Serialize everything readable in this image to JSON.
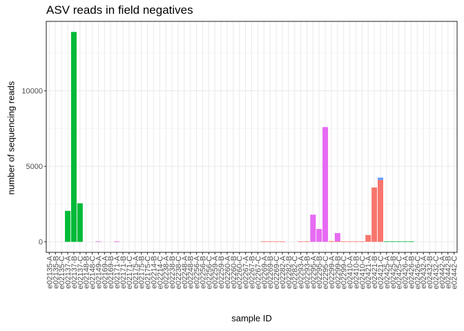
{
  "chart_data": {
    "type": "bar",
    "stacked": true,
    "title": "ASV reads in field negatives",
    "xlabel": "sample ID",
    "ylabel": "number of sequencing reads",
    "ylim": [
      -700,
      14600
    ],
    "yticks": [
      0,
      5000,
      10000
    ],
    "ytick_labels": [
      "0",
      "5000",
      "10000"
    ],
    "grid": true,
    "legend": "none",
    "colors": {
      "red": "#F8766D",
      "green": "#00BA38",
      "blue": "#619CFF",
      "magenta": "#E76BF3"
    },
    "categories": [
      "e02135-A",
      "e02135-B",
      "e02135-C",
      "e02137-A",
      "e02137-B",
      "e02137-C",
      "e02148-B",
      "e02148-C",
      "e02149-A",
      "e02169-A",
      "e02169-B",
      "e02171-A",
      "e02171-B",
      "e02171-C",
      "e02175-A",
      "e02175-B",
      "e02175-C",
      "e02214-B",
      "e02214-C",
      "e02238-A",
      "e02238-B",
      "e02238-C",
      "e02248-A",
      "e02248-B",
      "e02256-A",
      "e02256-B",
      "e02256-C",
      "e02259-A",
      "e02259-B",
      "e02260-A",
      "e02260-B",
      "e02260-C",
      "e02267-A",
      "e02267-B",
      "e02267-C",
      "e02269-A",
      "e02269-B",
      "e02269-C",
      "e02282-A",
      "e02282-B",
      "e02282-C",
      "e02293-A",
      "e02293-B",
      "e02295-A",
      "e02295-B",
      "e02295-C",
      "e02299-A",
      "e02299-B",
      "e02299-C",
      "e02410-A",
      "e02410-B",
      "e02410-C",
      "e02421-A",
      "e02421-B",
      "e02421-C",
      "e02425-A",
      "e02425-B",
      "e02425-C",
      "e02426-A",
      "e02426-B",
      "e02426-C",
      "e02432-A",
      "e02432-B",
      "e02432-C",
      "e02442-A",
      "e02442-B",
      "e02442-C"
    ],
    "series": [
      {
        "color": "#F8766D",
        "values": [
          0,
          0,
          0,
          0,
          0,
          0,
          0,
          0,
          0,
          0,
          0,
          0,
          0,
          0,
          0,
          0,
          0,
          0,
          0,
          0,
          0,
          0,
          0,
          0,
          0,
          0,
          0,
          0,
          0,
          0,
          0,
          0,
          0,
          0,
          0,
          30,
          30,
          30,
          30,
          0,
          0,
          30,
          30,
          0,
          0,
          0,
          50,
          30,
          30,
          30,
          30,
          30,
          450,
          3600,
          4100,
          0,
          0,
          0,
          0,
          0,
          0,
          0,
          0,
          0,
          0,
          0,
          0
        ]
      },
      {
        "color": "#00BA38",
        "values": [
          0,
          0,
          0,
          2050,
          13900,
          2550,
          0,
          0,
          0,
          0,
          0,
          0,
          0,
          0,
          0,
          0,
          0,
          0,
          0,
          0,
          0,
          0,
          0,
          0,
          0,
          0,
          0,
          0,
          0,
          0,
          0,
          0,
          0,
          0,
          0,
          0,
          0,
          0,
          0,
          0,
          0,
          0,
          0,
          0,
          0,
          0,
          0,
          0,
          0,
          0,
          0,
          0,
          0,
          0,
          0,
          30,
          30,
          30,
          30,
          30,
          0,
          0,
          0,
          0,
          0,
          0,
          0
        ]
      },
      {
        "color": "#619CFF",
        "values": [
          0,
          0,
          0,
          0,
          0,
          0,
          0,
          0,
          0,
          0,
          0,
          0,
          0,
          0,
          0,
          0,
          0,
          0,
          0,
          0,
          0,
          0,
          0,
          0,
          0,
          0,
          0,
          0,
          0,
          0,
          0,
          0,
          0,
          0,
          0,
          0,
          0,
          0,
          0,
          0,
          0,
          0,
          0,
          0,
          0,
          0,
          0,
          0,
          0,
          0,
          0,
          0,
          0,
          0,
          150,
          0,
          0,
          0,
          0,
          0,
          0,
          0,
          0,
          0,
          0,
          0,
          0
        ]
      },
      {
        "color": "#E76BF3",
        "values": [
          0,
          0,
          0,
          0,
          0,
          0,
          0,
          0,
          30,
          0,
          0,
          30,
          0,
          0,
          0,
          0,
          0,
          0,
          0,
          0,
          0,
          0,
          0,
          0,
          0,
          0,
          0,
          0,
          0,
          0,
          0,
          0,
          0,
          0,
          0,
          0,
          0,
          0,
          0,
          0,
          0,
          0,
          0,
          1800,
          850,
          7600,
          0,
          550,
          0,
          0,
          0,
          0,
          0,
          0,
          0,
          0,
          0,
          0,
          0,
          0,
          0,
          0,
          0,
          0,
          0,
          0,
          0
        ]
      }
    ]
  }
}
